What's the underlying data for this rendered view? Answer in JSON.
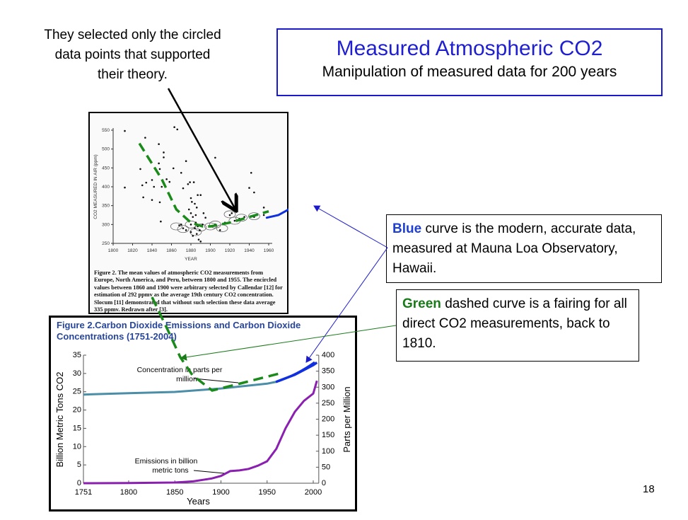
{
  "callout": "They selected only the circled data points that supported their theory.",
  "title": "Measured Atmospheric CO2",
  "subtitle": "Manipulation of measured data for 200 years",
  "blue_box": {
    "keyword": "Blue",
    "text": " curve is the modern, accurate data, measured at Mauna Loa Observatory, Hawaii."
  },
  "green_box": {
    "keyword": "Green",
    "text": " dashed curve is a fairing for all direct CO2 measurements, back to 1810."
  },
  "page_number": "18",
  "colors": {
    "blue": "#1f3fd0",
    "green": "#1a7a1a",
    "concentration": "#4a8ea8",
    "emissions": "#8a1fb0"
  },
  "chart_data": [
    {
      "type": "scatter",
      "xlabel": "YEAR",
      "ylabel": "CO2 MEASURED IN AIR (ppm)",
      "xlim": [
        1800,
        1960
      ],
      "ylim": [
        250,
        550
      ],
      "xticks": [
        "1800",
        "1820",
        "1840",
        "1860",
        "1880",
        "1900",
        "1920",
        "1940",
        "1960"
      ],
      "yticks": [
        "250",
        "300",
        "350",
        "400",
        "450",
        "500",
        "550"
      ],
      "caption": "Figure 2. The mean values of atmospheric CO2 measurements from Europe, North America, and Peru, between 1800 and 1955. The encircled values between 1860 and 1900 were arbitrary selected by Callendar [12] for estimation of 292 ppmv as the average 19th century CO2 concentration. Slocum [11] demonstrated that without such selection these data average 335 ppmv. Redrawn after [3].",
      "points": [
        [
          1812,
          548
        ],
        [
          1812,
          398
        ],
        [
          1828,
          447
        ],
        [
          1830,
          404
        ],
        [
          1831,
          372
        ],
        [
          1833,
          530
        ],
        [
          1834,
          411
        ],
        [
          1840,
          418
        ],
        [
          1840,
          365
        ],
        [
          1842,
          400
        ],
        [
          1847,
          513
        ],
        [
          1847,
          462
        ],
        [
          1848,
          447
        ],
        [
          1848,
          359
        ],
        [
          1849,
          308
        ],
        [
          1850,
          400
        ],
        [
          1852,
          491
        ],
        [
          1852,
          478
        ],
        [
          1855,
          420
        ],
        [
          1858,
          413
        ],
        [
          1862,
          449
        ],
        [
          1863,
          558
        ],
        [
          1866,
          552
        ],
        [
          1870,
          437
        ],
        [
          1872,
          396
        ],
        [
          1875,
          468
        ],
        [
          1877,
          407
        ],
        [
          1879,
          412
        ],
        [
          1880,
          370
        ],
        [
          1881,
          360
        ],
        [
          1883,
          412
        ],
        [
          1884,
          355
        ],
        [
          1886,
          345
        ],
        [
          1887,
          378
        ],
        [
          1890,
          378
        ],
        [
          1893,
          330
        ],
        [
          1895,
          318
        ],
        [
          1905,
          477
        ],
        [
          1940,
          397
        ],
        [
          1942,
          437
        ],
        [
          1945,
          385
        ],
        [
          1955,
          345
        ],
        [
          1955,
          325
        ],
        [
          1870,
          300
        ],
        [
          1872,
          290
        ],
        [
          1875,
          285
        ],
        [
          1878,
          310
        ],
        [
          1880,
          300
        ],
        [
          1880,
          280
        ],
        [
          1882,
          270
        ],
        [
          1884,
          290
        ],
        [
          1885,
          305
        ],
        [
          1886,
          275
        ],
        [
          1887,
          295
        ],
        [
          1888,
          260
        ],
        [
          1889,
          285
        ],
        [
          1890,
          255
        ],
        [
          1892,
          300
        ],
        [
          1878,
          340
        ],
        [
          1880,
          330
        ],
        [
          1882,
          320
        ],
        [
          1885,
          325
        ],
        [
          1876,
          315
        ],
        [
          1868,
          298
        ],
        [
          1900,
          295
        ],
        [
          1905,
          300
        ],
        [
          1910,
          285
        ],
        [
          1915,
          305
        ],
        [
          1920,
          325
        ],
        [
          1922,
          330
        ],
        [
          1925,
          310
        ],
        [
          1930,
          315
        ],
        [
          1935,
          320
        ],
        [
          1945,
          320
        ]
      ],
      "circled": [
        [
          1865,
          295
        ],
        [
          1872,
          288
        ],
        [
          1880,
          300
        ],
        [
          1885,
          280
        ],
        [
          1890,
          292
        ],
        [
          1900,
          295
        ],
        [
          1905,
          300
        ],
        [
          1912,
          290
        ],
        [
          1920,
          327
        ],
        [
          1925,
          310
        ],
        [
          1932,
          318
        ],
        [
          1945,
          322
        ]
      ],
      "green_fairing": [
        [
          1827,
          515
        ],
        [
          1850,
          420
        ],
        [
          1865,
          340
        ],
        [
          1880,
          305
        ],
        [
          1892,
          295
        ],
        [
          1900,
          295
        ],
        [
          1920,
          305
        ],
        [
          1940,
          320
        ],
        [
          1960,
          335
        ]
      ],
      "blue_modern": [
        [
          1958,
          318
        ],
        [
          1970,
          325
        ],
        [
          1980,
          339
        ],
        [
          1990,
          354
        ],
        [
          2000,
          372
        ],
        [
          2015,
          388
        ]
      ]
    },
    {
      "type": "line",
      "title": "Figure 2.Carbon Dioxide Emissions and Carbon Dioxide Concentrations (1751-2004)",
      "xlabel": "Years",
      "ylabel": "Billion Metric Tons CO2",
      "ylabel_right": "Parts per Million",
      "xlim": [
        1751,
        2004
      ],
      "ylim": [
        0,
        35
      ],
      "ylim_right": [
        0,
        400
      ],
      "xticks": [
        "1751",
        "1800",
        "1850",
        "1900",
        "1950",
        "2000"
      ],
      "yticks": [
        "0",
        "5",
        "10",
        "15",
        "20",
        "25",
        "30",
        "35"
      ],
      "yticks_right": [
        "0",
        "50",
        "100",
        "150",
        "200",
        "250",
        "300",
        "350",
        "400"
      ],
      "annotations": [
        "Concentration in parts per million",
        "Emissions in billion metric tons"
      ],
      "series": [
        {
          "name": "Concentration (ppm)",
          "axis": "right",
          "points": [
            [
              1751,
              277
            ],
            [
              1800,
              281
            ],
            [
              1850,
              285
            ],
            [
              1900,
              296
            ],
            [
              1950,
              311
            ],
            [
              1960,
              317
            ],
            [
              1980,
              339
            ],
            [
              2000,
              369
            ],
            [
              2004,
              377
            ]
          ]
        },
        {
          "name": "Emissions (billion metric tons)",
          "axis": "left",
          "points": [
            [
              1751,
              0
            ],
            [
              1800,
              0.04
            ],
            [
              1850,
              0.2
            ],
            [
              1870,
              0.5
            ],
            [
              1890,
              1.3
            ],
            [
              1900,
              2
            ],
            [
              1910,
              3.3
            ],
            [
              1920,
              3.5
            ],
            [
              1930,
              3.9
            ],
            [
              1940,
              4.8
            ],
            [
              1950,
              6
            ],
            [
              1960,
              9.4
            ],
            [
              1970,
              15
            ],
            [
              1980,
              19.5
            ],
            [
              1990,
              22.5
            ],
            [
              2000,
              24.5
            ],
            [
              2004,
              28
            ]
          ]
        }
      ]
    }
  ]
}
